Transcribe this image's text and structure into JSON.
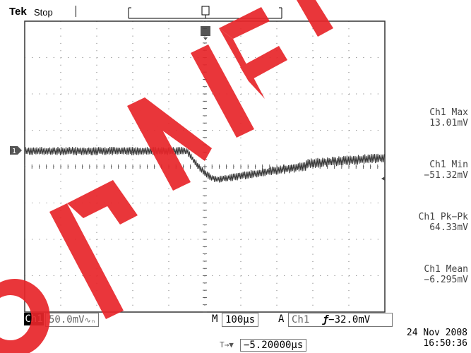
{
  "header": {
    "brand": "Tek",
    "status": "Stop",
    "trigger_marker": "T"
  },
  "channel": {
    "ground_marker": "1",
    "trigger_level_marker": "◀"
  },
  "measurements": [
    {
      "label": "Ch1 Max",
      "value": "13.01mV"
    },
    {
      "label": "Ch1 Min",
      "value": "−51.32mV"
    },
    {
      "label": "Ch1 Pk−Pk",
      "value": "64.33mV"
    },
    {
      "label": "Ch1 Mean",
      "value": "−6.295mV"
    }
  ],
  "bottom_bar": {
    "channel_label": "Ch1",
    "volts_per_div": "50.0mV",
    "bw_symbol": "∿ₙ",
    "time_label": "M",
    "time_per_div": "100µs",
    "acq_label": "A",
    "trigger_source": "Ch1",
    "trigger_slope": "ƒ",
    "trigger_level": "−32.0mV",
    "position_icon": "T→▼",
    "horizontal_position": "−5.20000µs"
  },
  "datetime": {
    "date": "24 Nov 2008",
    "time": "16:50:36"
  },
  "colors": {
    "trace": "#333333",
    "grid": "#444444",
    "watermark": "#e8252a"
  }
}
